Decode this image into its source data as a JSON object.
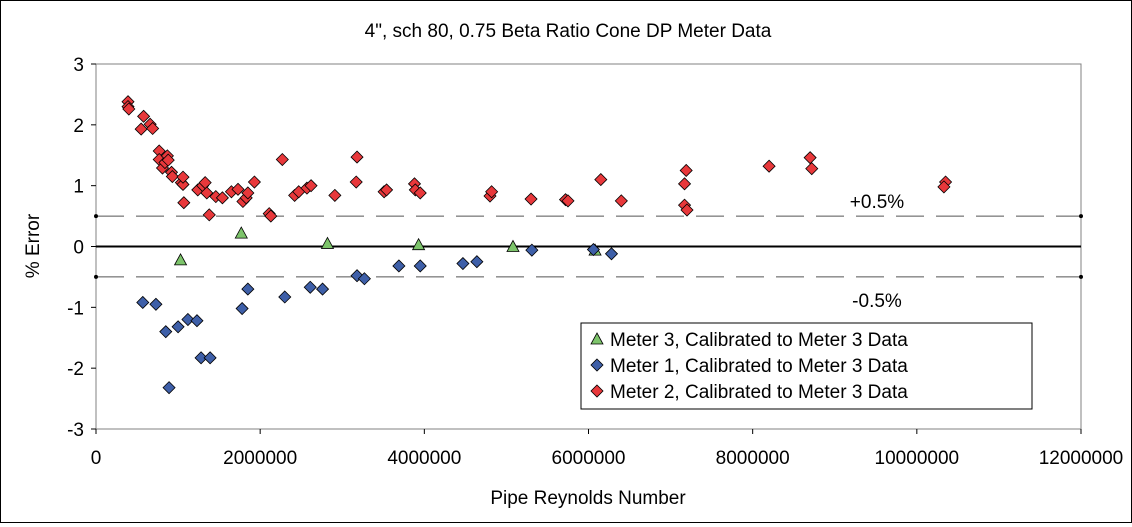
{
  "chart_data": {
    "type": "scatter",
    "title": "4\", sch 80, 0.75 Beta Ratio Cone DP Meter Data",
    "xlabel": "Pipe Reynolds Number",
    "ylabel": "% Error",
    "xlim": [
      0,
      12000000
    ],
    "ylim": [
      -3,
      3
    ],
    "x_ticks": [
      "0",
      "2000000",
      "4000000",
      "6000000",
      "8000000",
      "10000000",
      "12000000"
    ],
    "y_ticks": [
      "3",
      "2",
      "1",
      "0",
      "-1",
      "-2",
      "-3"
    ],
    "grid": false,
    "legend_position": "bottom-right",
    "reference_lines": [
      {
        "y": 0.5,
        "label": "+0.5%",
        "style": "dashed"
      },
      {
        "y": 0,
        "label": "",
        "style": "solid"
      },
      {
        "y": -0.5,
        "label": "-0.5%",
        "style": "dashed"
      }
    ],
    "series": [
      {
        "name": "Meter 3, Calibrated to Meter 3 Data",
        "marker": "triangle",
        "color": "#7dc46b",
        "points": [
          [
            1030000,
            -0.22
          ],
          [
            1770000,
            0.22
          ],
          [
            2820000,
            0.05
          ],
          [
            3930000,
            0.03
          ],
          [
            5080000,
            0.0
          ],
          [
            6080000,
            -0.06
          ]
        ]
      },
      {
        "name": "Meter 1, Calibrated to Meter 3 Data",
        "marker": "diamond",
        "color": "#3e5fa8",
        "points": [
          [
            570000,
            -0.92
          ],
          [
            730000,
            -0.95
          ],
          [
            850000,
            -1.4
          ],
          [
            890000,
            -2.32
          ],
          [
            1000000,
            -1.32
          ],
          [
            1120000,
            -1.2
          ],
          [
            1230000,
            -1.22
          ],
          [
            1280000,
            -1.83
          ],
          [
            1390000,
            -1.83
          ],
          [
            1780000,
            -1.02
          ],
          [
            1850000,
            -0.7
          ],
          [
            2300000,
            -0.83
          ],
          [
            2610000,
            -0.67
          ],
          [
            2760000,
            -0.7
          ],
          [
            3180000,
            -0.48
          ],
          [
            3270000,
            -0.53
          ],
          [
            3690000,
            -0.32
          ],
          [
            3950000,
            -0.32
          ],
          [
            4470000,
            -0.28
          ],
          [
            4640000,
            -0.25
          ],
          [
            5310000,
            -0.06
          ],
          [
            6060000,
            -0.05
          ],
          [
            6280000,
            -0.12
          ]
        ]
      },
      {
        "name": "Meter 2, Calibrated to Meter 3 Data",
        "marker": "diamond",
        "color": "#e8383b",
        "points": [
          [
            390000,
            2.38
          ],
          [
            390000,
            2.3
          ],
          [
            400000,
            2.26
          ],
          [
            550000,
            1.93
          ],
          [
            580000,
            2.14
          ],
          [
            660000,
            2.01
          ],
          [
            690000,
            1.94
          ],
          [
            770000,
            1.57
          ],
          [
            770000,
            1.43
          ],
          [
            810000,
            1.29
          ],
          [
            840000,
            1.38
          ],
          [
            870000,
            1.49
          ],
          [
            880000,
            1.42
          ],
          [
            920000,
            1.22
          ],
          [
            930000,
            1.15
          ],
          [
            1040000,
            1.05
          ],
          [
            1060000,
            1.02
          ],
          [
            1060000,
            1.14
          ],
          [
            1070000,
            0.72
          ],
          [
            1240000,
            0.93
          ],
          [
            1300000,
            1.0
          ],
          [
            1330000,
            1.05
          ],
          [
            1350000,
            0.88
          ],
          [
            1380000,
            0.52
          ],
          [
            1460000,
            0.82
          ],
          [
            1540000,
            0.8
          ],
          [
            1650000,
            0.9
          ],
          [
            1730000,
            0.94
          ],
          [
            1790000,
            0.74
          ],
          [
            1830000,
            0.8
          ],
          [
            1850000,
            0.88
          ],
          [
            1930000,
            1.06
          ],
          [
            2110000,
            0.54
          ],
          [
            2130000,
            0.5
          ],
          [
            2270000,
            1.43
          ],
          [
            2420000,
            0.84
          ],
          [
            2470000,
            0.9
          ],
          [
            2570000,
            0.96
          ],
          [
            2620000,
            1.0
          ],
          [
            2910000,
            0.84
          ],
          [
            3170000,
            1.06
          ],
          [
            3180000,
            1.47
          ],
          [
            3510000,
            0.9
          ],
          [
            3540000,
            0.93
          ],
          [
            3880000,
            1.03
          ],
          [
            3890000,
            0.93
          ],
          [
            3950000,
            0.88
          ],
          [
            4800000,
            0.83
          ],
          [
            4820000,
            0.9
          ],
          [
            5300000,
            0.78
          ],
          [
            5720000,
            0.77
          ],
          [
            5750000,
            0.75
          ],
          [
            6150000,
            1.1
          ],
          [
            6400000,
            0.75
          ],
          [
            7170000,
            1.03
          ],
          [
            7190000,
            1.25
          ],
          [
            7170000,
            0.68
          ],
          [
            7200000,
            0.6
          ],
          [
            8200000,
            1.32
          ],
          [
            8700000,
            1.46
          ],
          [
            8720000,
            1.28
          ],
          [
            10350000,
            1.06
          ],
          [
            10330000,
            0.98
          ]
        ]
      }
    ]
  }
}
